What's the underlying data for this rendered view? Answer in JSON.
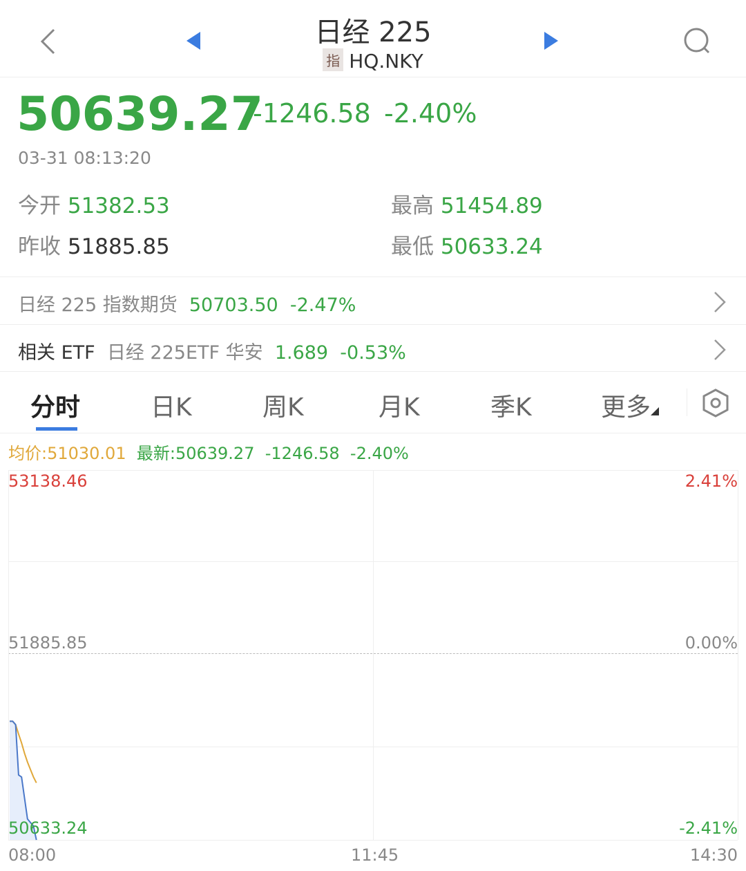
{
  "header": {
    "title": "日经 225",
    "badge": "指",
    "code": "HQ.NKY",
    "back_icon": "chevron-left",
    "prev_icon": "triangle-left",
    "next_icon": "triangle-right",
    "search_icon": "search"
  },
  "quote": {
    "price": "50639.27",
    "change": "-1246.58",
    "change_pct": "-2.40%",
    "time": "03-31 08:13:20",
    "open_label": "今开",
    "open": "51382.53",
    "high_label": "最高",
    "high": "51454.89",
    "prev_close_label": "昨收",
    "prev_close": "51885.85",
    "low_label": "最低",
    "low": "50633.24"
  },
  "futures": {
    "name": "日经 225 指数期货",
    "price": "50703.50",
    "change_pct": "-2.47%"
  },
  "etf": {
    "label": "相关 ETF",
    "name": "日经 225ETF 华安",
    "price": "1.689",
    "change_pct": "-0.53%"
  },
  "tabs": [
    {
      "label": "分时",
      "active": true
    },
    {
      "label": "日K"
    },
    {
      "label": "周K"
    },
    {
      "label": "月K"
    },
    {
      "label": "季K"
    },
    {
      "label": "更多"
    }
  ],
  "settings_icon": "gear",
  "legend": {
    "avg": "均价:51030.01",
    "latest": "最新:50639.27",
    "change": "-1246.58",
    "change_pct": "-2.40%"
  },
  "colors": {
    "up": "#d9403a",
    "down": "#3aa646",
    "avg": "#e0a83a",
    "price_line": "#4a78c9"
  },
  "chart_data": {
    "type": "line",
    "y_top_label": "53138.46",
    "y_mid_label": "51885.85",
    "y_bottom_label": "50633.24",
    "pct_top": "2.41%",
    "pct_mid": "0.00%",
    "pct_bottom": "-2.41%",
    "ylim": [
      50633.24,
      53138.46
    ],
    "base": 51885.85,
    "x_ticks": [
      "08:00",
      "11:45",
      "14:30"
    ],
    "series": [
      {
        "values": [
          51437,
          51437,
          51414,
          51073,
          51059,
          50917,
          50775,
          50751,
          50728,
          50633
        ]
      },
      {
        "values": [
          51437,
          51437,
          51414,
          51350,
          51290,
          51220,
          51160,
          51110,
          51060,
          51020
        ]
      }
    ]
  }
}
